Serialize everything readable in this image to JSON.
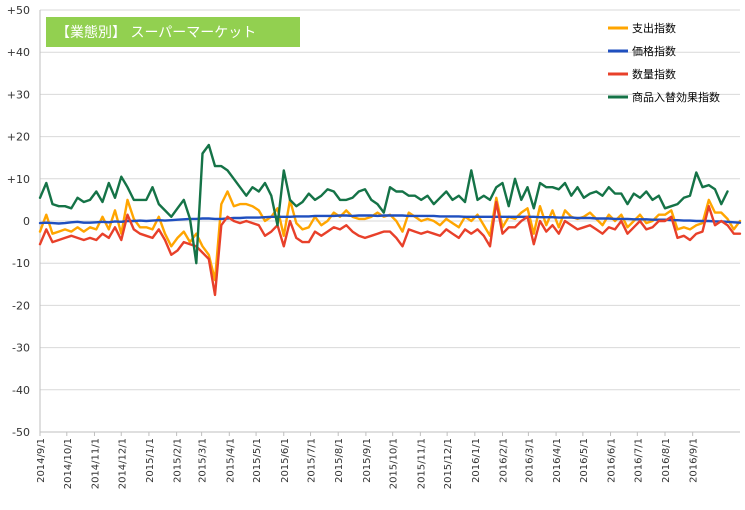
{
  "chart_data": {
    "type": "line",
    "title": "【業態別】 スーパーマーケット",
    "title_bg_color": "#92d050",
    "xlabel": "",
    "ylabel": "",
    "ylim": [
      -50,
      50
    ],
    "yticks": [
      50,
      40,
      30,
      20,
      10,
      0,
      -10,
      -20,
      -30,
      -40,
      -50
    ],
    "ytick_labels": [
      "+50",
      "+40",
      "+30",
      "+20",
      "+10",
      "0",
      "-10",
      "-20",
      "-30",
      "-40",
      "-50"
    ],
    "x_tick_labels": [
      "2014/9/1",
      "2014/10/1",
      "2014/11/1",
      "2014/12/1",
      "2015/1/1",
      "2015/2/1",
      "2015/3/1",
      "2015/4/1",
      "2015/5/1",
      "2015/6/1",
      "2015/7/1",
      "2015/8/1",
      "2015/9/1",
      "2015/10/1",
      "2015/11/1",
      "2015/12/1",
      "2016/1/1",
      "2016/2/1",
      "2016/3/1",
      "2016/4/1",
      "2016/5/1",
      "2016/6/1",
      "2016/7/1",
      "2016/8/1",
      "2016/9/1"
    ],
    "grid": true,
    "legend_position": "top-right",
    "x_start": "2014-09-01",
    "x_step_days": 7,
    "series": [
      {
        "name": "支出指数",
        "color": "#ffa500",
        "values": [
          -2.5,
          1.5,
          -3,
          -2.5,
          -2,
          -2.5,
          -1.5,
          -2.5,
          -1.5,
          -2,
          1,
          -2,
          2.5,
          -3,
          5,
          0.5,
          -1.5,
          -1.5,
          -2,
          1,
          -3,
          -6,
          -4,
          -2.5,
          -5,
          -3,
          -6,
          -8,
          -14,
          4,
          7,
          3.5,
          4,
          4,
          3.5,
          2.5,
          0,
          1,
          3,
          -3.5,
          5,
          -0.5,
          -2,
          -1.5,
          1,
          -1,
          0,
          2,
          1,
          2.5,
          1,
          0.5,
          0.5,
          1,
          2,
          1,
          1.5,
          0,
          -2.5,
          2,
          1,
          0,
          0.5,
          0,
          -1,
          0.5,
          -0.5,
          -1.5,
          1,
          0,
          1.5,
          -1,
          -3.5,
          5.5,
          -1.5,
          1,
          0.5,
          2,
          3,
          -3,
          3.5,
          -1,
          2.5,
          -1.5,
          2.5,
          1,
          0.5,
          1,
          2,
          0.5,
          -1,
          1.5,
          0,
          1.5,
          -1.5,
          0,
          1.5,
          -0.5,
          0,
          1.5,
          1.5,
          2.5,
          -2,
          -1.5,
          -2,
          -1,
          -0.5,
          5,
          2,
          2,
          0.5,
          -2,
          0
        ]
      },
      {
        "name": "価格指数",
        "color": "#1f4fbf",
        "values": [
          -0.5,
          -0.4,
          -0.5,
          -0.6,
          -0.5,
          -0.3,
          -0.2,
          -0.4,
          -0.4,
          -0.3,
          -0.2,
          -0.3,
          -0.1,
          -0.2,
          0,
          0,
          0.1,
          0,
          0.1,
          0.2,
          0.1,
          0.2,
          0.3,
          0.4,
          0.5,
          0.5,
          0.6,
          0.6,
          0.5,
          0.5,
          0.6,
          0.7,
          0.7,
          0.8,
          0.8,
          0.8,
          0.9,
          1,
          1,
          1,
          1,
          1.1,
          1.1,
          1.1,
          1.2,
          1.2,
          1.2,
          1.2,
          1.3,
          1.3,
          1.2,
          1.3,
          1.3,
          1.3,
          1.2,
          1.3,
          1.3,
          1.3,
          1.3,
          1.2,
          1.2,
          1.2,
          1.2,
          1.2,
          1.1,
          1.1,
          1.1,
          1.1,
          1,
          1,
          1,
          1,
          1,
          1,
          1,
          1,
          1,
          1,
          1,
          1,
          0.9,
          0.9,
          0.9,
          0.8,
          0.8,
          0.8,
          0.7,
          0.7,
          0.7,
          0.6,
          0.6,
          0.6,
          0.5,
          0.5,
          0.5,
          0.4,
          0.4,
          0.4,
          0.3,
          0.3,
          0.3,
          0.2,
          0.2,
          0.1,
          0.1,
          0,
          0,
          0,
          -0.1,
          -0.1,
          -0.2,
          -0.3,
          -0.4
        ]
      },
      {
        "name": "数量指数",
        "color": "#e8402a",
        "values": [
          -5.5,
          -2,
          -5,
          -4.5,
          -4,
          -3.5,
          -4,
          -4.5,
          -4,
          -4.5,
          -3,
          -4,
          -1.5,
          -4.5,
          1.5,
          -2,
          -3,
          -3.5,
          -4,
          -2,
          -4.5,
          -8,
          -7,
          -5,
          -5.5,
          -6,
          -7.5,
          -9,
          -17.5,
          -1,
          1,
          0,
          -0.5,
          0,
          -0.5,
          -1,
          -3.5,
          -2.5,
          -1,
          -6,
          0,
          -4,
          -5,
          -5,
          -2.5,
          -3.5,
          -2.5,
          -1.5,
          -2,
          -1,
          -2.5,
          -3.5,
          -4,
          -3.5,
          -3,
          -2.5,
          -2.5,
          -4,
          -6,
          -2,
          -2.5,
          -3,
          -2.5,
          -3,
          -3.5,
          -2,
          -3,
          -4,
          -2,
          -3,
          -2,
          -3.5,
          -6,
          4.5,
          -3,
          -1.5,
          -1.5,
          0,
          1,
          -5.5,
          0,
          -2.5,
          -1,
          -3,
          0,
          -1,
          -2,
          -1.5,
          -1,
          -2,
          -3,
          -1.5,
          -2,
          0,
          -3,
          -1.5,
          0,
          -2,
          -1.5,
          0,
          0,
          1,
          -4,
          -3.5,
          -4.5,
          -3,
          -2.5,
          3.5,
          -1,
          0,
          -1,
          -3,
          -3
        ]
      },
      {
        "name": "商品入替効果指数",
        "color": "#157347",
        "values": [
          5.5,
          9,
          4,
          3.5,
          3.5,
          3,
          5.5,
          4.5,
          5,
          7,
          4.5,
          9,
          5.5,
          10.5,
          8,
          5,
          5,
          5,
          8,
          4,
          2.5,
          1,
          3,
          5,
          0.5,
          -10,
          16,
          18,
          13,
          13,
          12,
          10,
          8,
          6,
          8,
          7,
          9,
          6,
          -1,
          12,
          5,
          3.5,
          4.5,
          6.5,
          5,
          6,
          7.5,
          7,
          5,
          5,
          5.5,
          7,
          7.5,
          5,
          4,
          2,
          8,
          7,
          7,
          6,
          6,
          5,
          6,
          4,
          5.5,
          7,
          5,
          6,
          4.5,
          12,
          5,
          6,
          5,
          8,
          9,
          3.5,
          10,
          5,
          8,
          3,
          9,
          8,
          8,
          7.5,
          9,
          6,
          8,
          5.5,
          6.5,
          7,
          6,
          8,
          6.5,
          6.5,
          4,
          6.5,
          5.5,
          7,
          5,
          6,
          3,
          3.5,
          4,
          5.5,
          6,
          11.5,
          8,
          8.5,
          7.5,
          4,
          7
        ]
      }
    ]
  }
}
